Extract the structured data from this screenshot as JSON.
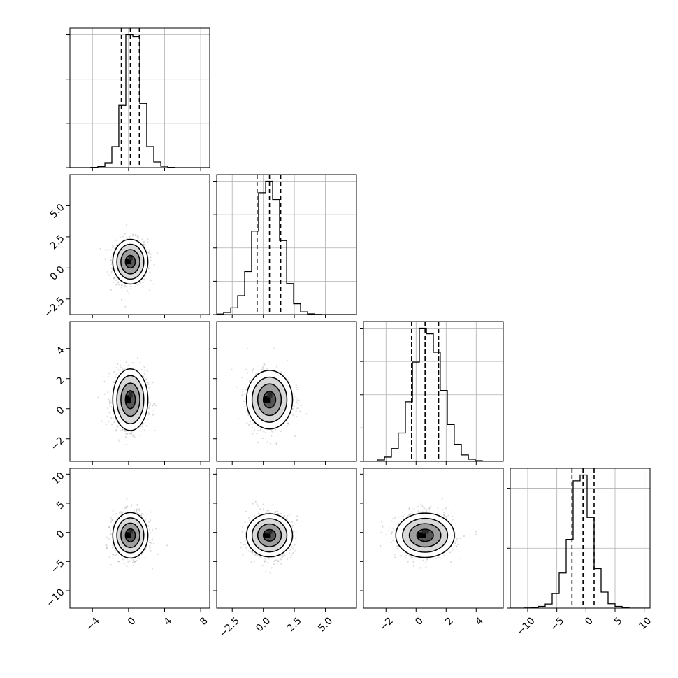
{
  "chart_data": {
    "type": "corner",
    "parameters": 4,
    "colors": {
      "line": "#000000",
      "grid": "#b0b0b0",
      "scatter": "#7f7f7f",
      "density_dark": "#000000",
      "density_light": "#ffffff"
    },
    "grid": true,
    "axes": [
      {
        "range": [
          -6.5,
          9.0
        ],
        "ticks": [
          -4,
          0,
          4,
          8
        ],
        "tick_labels": [
          "−4",
          "0",
          "4",
          "8"
        ],
        "median": 0.2,
        "sigma": 1.0,
        "quantiles": [
          -0.8,
          0.2,
          1.2
        ],
        "hist_ticks": [
          0,
          0.33,
          0.66,
          1.0
        ]
      },
      {
        "range": [
          -3.75,
          7.5
        ],
        "ticks": [
          -2.5,
          0.0,
          2.5,
          5.0
        ],
        "tick_labels": [
          "−2.5",
          "0.0",
          "2.5",
          "5.0"
        ],
        "median": 0.5,
        "sigma": 0.9,
        "quantiles": [
          -0.5,
          0.5,
          1.4
        ],
        "hist_ticks": [
          0,
          0.25,
          0.5,
          0.75,
          1.0
        ]
      },
      {
        "range": [
          -3.5,
          5.8
        ],
        "ticks": [
          -2,
          0,
          2,
          4
        ],
        "tick_labels": [
          "−2",
          "0",
          "2",
          "4"
        ],
        "median": 0.6,
        "sigma": 0.95,
        "quantiles": [
          -0.3,
          0.6,
          1.5
        ],
        "hist_ticks": [
          0,
          0.25,
          0.5,
          0.75,
          1.0
        ]
      },
      {
        "range": [
          -13.0,
          11.0
        ],
        "ticks": [
          -10,
          -5,
          0,
          5,
          10
        ],
        "tick_labels": [
          "−10",
          "−5",
          "0",
          "5",
          "10"
        ],
        "median": -0.5,
        "sigma": 1.9,
        "quantiles": [
          -2.4,
          -0.5,
          1.4
        ],
        "hist_ticks": [
          0,
          0.45,
          0.9
        ]
      }
    ],
    "y_tick_panels": [
      {
        "row": 1,
        "ticks": [
          -2.5,
          0.0,
          2.5,
          5.0
        ],
        "tick_labels": [
          "−2.5",
          "0.0",
          "2.5",
          "5.0"
        ]
      },
      {
        "row": 2,
        "ticks": [
          -2,
          0,
          2,
          4
        ],
        "tick_labels": [
          "−2",
          "0",
          "2",
          "4"
        ]
      },
      {
        "row": 3,
        "ticks": [
          -10,
          -5,
          0,
          5,
          10
        ],
        "tick_labels": [
          "−10",
          "−5",
          "0",
          "5",
          "10"
        ]
      }
    ],
    "histograms": [
      {
        "param": 0,
        "edges": [
          -6.5,
          -5.72,
          -4.95,
          -4.18,
          -3.4,
          -2.62,
          -1.85,
          -1.08,
          -0.3,
          0.48,
          1.25,
          2.02,
          2.8,
          3.58,
          4.35,
          5.12,
          5.9,
          6.68,
          7.45,
          8.22,
          9.0
        ],
        "counts": [
          0,
          0,
          0,
          2,
          8,
          35,
          150,
          450,
          955,
          940,
          460,
          150,
          40,
          10,
          2,
          0,
          0,
          0,
          0,
          0
        ]
      },
      {
        "param": 1,
        "edges": [
          -3.75,
          -3.19,
          -2.62,
          -2.06,
          -1.5,
          -0.94,
          -0.38,
          0.19,
          0.75,
          1.31,
          1.88,
          2.44,
          3.0,
          3.56,
          4.12,
          4.69,
          5.25,
          5.81,
          6.38,
          6.94,
          7.5
        ],
        "counts": [
          4,
          16,
          50,
          140,
          320,
          620,
          905,
          990,
          855,
          550,
          230,
          80,
          20,
          5,
          1,
          0,
          0,
          0,
          0,
          0
        ]
      },
      {
        "param": 2,
        "edges": [
          -3.5,
          -3.04,
          -2.57,
          -2.1,
          -1.64,
          -1.18,
          -0.71,
          -0.24,
          0.22,
          0.69,
          1.15,
          1.61,
          2.08,
          2.54,
          3.01,
          3.48,
          3.94,
          4.41,
          4.87,
          5.33,
          5.8
        ],
        "counts": [
          0,
          2,
          10,
          30,
          90,
          200,
          420,
          700,
          940,
          900,
          770,
          500,
          260,
          120,
          45,
          15,
          5,
          0,
          0,
          0
        ]
      },
      {
        "param": 3,
        "edges": [
          -13.0,
          -11.8,
          -10.6,
          -9.4,
          -8.2,
          -7.0,
          -5.8,
          -4.6,
          -3.4,
          -2.2,
          -1.0,
          0.2,
          1.4,
          2.6,
          3.8,
          5.0,
          6.2,
          7.4,
          8.6,
          9.8,
          11.0
        ],
        "counts": [
          0,
          0,
          1,
          4,
          12,
          28,
          100,
          240,
          470,
          870,
          910,
          620,
          270,
          110,
          30,
          12,
          3,
          0,
          0,
          0
        ]
      }
    ],
    "pairs": [
      {
        "x": 0,
        "y": 1,
        "center": [
          0.2,
          0.5
        ],
        "spread": [
          0.95,
          0.9
        ],
        "contours": [
          {
            "rx": 0.55,
            "ry": 0.5
          },
          {
            "rx": 1.05,
            "ry": 0.98
          },
          {
            "rx": 1.5,
            "ry": 1.4
          },
          {
            "rx": 1.95,
            "ry": 1.8
          }
        ]
      },
      {
        "x": 0,
        "y": 2,
        "center": [
          0.2,
          0.6
        ],
        "spread": [
          0.95,
          0.95
        ],
        "contours": [
          {
            "rx": 0.55,
            "ry": 0.6
          },
          {
            "rx": 1.05,
            "ry": 1.1
          },
          {
            "rx": 1.5,
            "ry": 1.6
          },
          {
            "rx": 1.95,
            "ry": 2.05
          }
        ]
      },
      {
        "x": 1,
        "y": 2,
        "center": [
          0.5,
          0.6
        ],
        "spread": [
          0.9,
          0.95
        ],
        "contours": [
          {
            "rx": 0.5,
            "ry": 0.55
          },
          {
            "rx": 0.95,
            "ry": 1.05
          },
          {
            "rx": 1.4,
            "ry": 1.5
          },
          {
            "rx": 1.85,
            "ry": 1.95
          }
        ]
      },
      {
        "x": 0,
        "y": 3,
        "center": [
          0.2,
          -0.5
        ],
        "spread": [
          0.95,
          1.9
        ],
        "contours": [
          {
            "rx": 0.55,
            "ry": 1.1
          },
          {
            "rx": 1.05,
            "ry": 2.1
          },
          {
            "rx": 1.5,
            "ry": 3.0
          },
          {
            "rx": 1.95,
            "ry": 3.9
          }
        ]
      },
      {
        "x": 1,
        "y": 3,
        "center": [
          0.5,
          -0.5
        ],
        "spread": [
          0.9,
          1.9
        ],
        "contours": [
          {
            "rx": 0.5,
            "ry": 1.0
          },
          {
            "rx": 0.95,
            "ry": 1.95
          },
          {
            "rx": 1.4,
            "ry": 2.85
          },
          {
            "rx": 1.85,
            "ry": 3.7
          }
        ]
      },
      {
        "x": 2,
        "y": 3,
        "center": [
          0.6,
          -0.5
        ],
        "spread": [
          0.95,
          1.9
        ],
        "contours": [
          {
            "rx": 0.55,
            "ry": 1.05
          },
          {
            "rx": 1.05,
            "ry": 2.0
          },
          {
            "rx": 1.5,
            "ry": 2.9
          },
          {
            "rx": 1.95,
            "ry": 3.8
          }
        ]
      }
    ]
  }
}
